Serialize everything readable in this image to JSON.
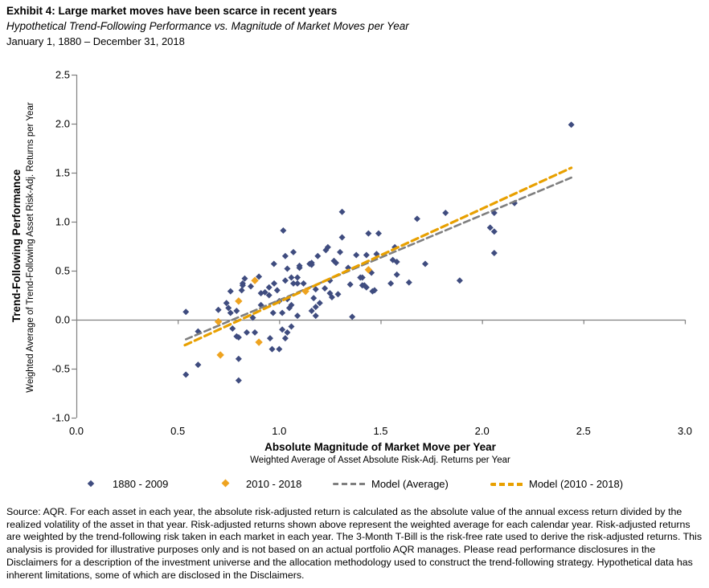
{
  "header": {
    "title": "Exhibit 4: Large market moves have been scarce in recent years",
    "subtitle": "Hypothetical Trend-Following Performance vs. Magnitude of Market Moves per Year",
    "date_range": "January 1, 1880 – December 31, 2018"
  },
  "chart_data": {
    "type": "scatter",
    "x_axis": {
      "title": "Absolute Magnitude of Market Move per Year",
      "subtitle": "Weighted Average of Asset Absolute Risk-Adj. Returns per Year",
      "min": 0.0,
      "max": 3.0,
      "ticks": [
        0.0,
        0.5,
        1.0,
        1.5,
        2.0,
        2.5,
        3.0
      ]
    },
    "y_axis": {
      "title": "Trend-Following Performance",
      "subtitle": "Weighted Average of Trend-Following Asset Risk-Adj. Returns per Year",
      "min": -1.0,
      "max": 2.5,
      "ticks": [
        2.5,
        2.0,
        1.5,
        1.0,
        0.5,
        0.0,
        -0.5,
        -1.0
      ]
    },
    "grid": "zero-line-only",
    "legend_position": "bottom",
    "colors": {
      "axis": "#808080",
      "text": "#000000"
    },
    "series": [
      {
        "name": "1880 - 2009",
        "type": "scatter",
        "marker": "diamond",
        "color": "#3F4C7F",
        "points": [
          [
            0.54,
            0.08
          ],
          [
            0.54,
            -0.56
          ],
          [
            0.6,
            -0.12
          ],
          [
            0.6,
            -0.46
          ],
          [
            0.7,
            0.1
          ],
          [
            0.74,
            0.17
          ],
          [
            0.75,
            0.12
          ],
          [
            0.76,
            0.07
          ],
          [
            0.76,
            0.29
          ],
          [
            0.77,
            -0.09
          ],
          [
            0.79,
            -0.17
          ],
          [
            0.79,
            0.09
          ],
          [
            0.8,
            -0.4
          ],
          [
            0.8,
            -0.62
          ],
          [
            0.8,
            -0.18
          ],
          [
            0.815,
            0.3
          ],
          [
            0.82,
            0.37
          ],
          [
            0.82,
            0.35
          ],
          [
            0.83,
            0.42
          ],
          [
            0.84,
            -0.13
          ],
          [
            0.86,
            0.34
          ],
          [
            0.87,
            0.02
          ],
          [
            0.88,
            -0.13
          ],
          [
            0.9,
            0.44
          ],
          [
            0.91,
            0.27
          ],
          [
            0.91,
            0.15
          ],
          [
            0.93,
            0.28
          ],
          [
            0.95,
            0.33
          ],
          [
            0.95,
            0.25
          ],
          [
            0.955,
            -0.19
          ],
          [
            0.965,
            -0.3
          ],
          [
            0.97,
            0.07
          ],
          [
            0.975,
            0.37
          ],
          [
            0.974,
            0.57
          ],
          [
            0.99,
            0.3
          ],
          [
            1.0,
            0.19
          ],
          [
            1.0,
            -0.3
          ],
          [
            1.015,
            0.07
          ],
          [
            1.015,
            -0.1
          ],
          [
            1.02,
            0.91
          ],
          [
            1.03,
            0.4
          ],
          [
            1.03,
            0.65
          ],
          [
            1.03,
            -0.19
          ],
          [
            1.04,
            -0.13
          ],
          [
            1.04,
            0.52
          ],
          [
            1.04,
            0.21
          ],
          [
            1.05,
            0.12
          ],
          [
            1.06,
            -0.07
          ],
          [
            1.06,
            0.43
          ],
          [
            1.06,
            0.15
          ],
          [
            1.07,
            0.69
          ],
          [
            1.07,
            0.37
          ],
          [
            1.09,
            0.43
          ],
          [
            1.09,
            0.37
          ],
          [
            1.09,
            0.04
          ],
          [
            1.1,
            0.55
          ],
          [
            1.1,
            0.53
          ],
          [
            1.12,
            0.37
          ],
          [
            1.15,
            0.57
          ],
          [
            1.16,
            0.58
          ],
          [
            1.16,
            0.56
          ],
          [
            1.16,
            0.09
          ],
          [
            1.17,
            0.22
          ],
          [
            1.18,
            0.31
          ],
          [
            1.18,
            0.13
          ],
          [
            1.18,
            0.04
          ],
          [
            1.19,
            0.65
          ],
          [
            1.2,
            0.17
          ],
          [
            1.225,
            0.32
          ],
          [
            1.23,
            0.71
          ],
          [
            1.24,
            0.74
          ],
          [
            1.25,
            0.4
          ],
          [
            1.25,
            0.27
          ],
          [
            1.26,
            0.23
          ],
          [
            1.27,
            0.6
          ],
          [
            1.28,
            0.58
          ],
          [
            1.29,
            0.26
          ],
          [
            1.3,
            0.69
          ],
          [
            1.31,
            0.84
          ],
          [
            1.31,
            1.1
          ],
          [
            1.34,
            0.53
          ],
          [
            1.35,
            0.36
          ],
          [
            1.36,
            0.03
          ],
          [
            1.38,
            0.66
          ],
          [
            1.4,
            0.43
          ],
          [
            1.41,
            0.43
          ],
          [
            1.41,
            0.35
          ],
          [
            1.42,
            0.35
          ],
          [
            1.43,
            0.33
          ],
          [
            1.43,
            0.66
          ],
          [
            1.44,
            0.88
          ],
          [
            1.455,
            0.48
          ],
          [
            1.46,
            0.29
          ],
          [
            1.47,
            0.3
          ],
          [
            1.48,
            0.67
          ],
          [
            1.49,
            0.88
          ],
          [
            1.55,
            0.37
          ],
          [
            1.56,
            0.61
          ],
          [
            1.57,
            0.74
          ],
          [
            1.58,
            0.46
          ],
          [
            1.58,
            0.59
          ],
          [
            1.64,
            0.38
          ],
          [
            1.68,
            1.03
          ],
          [
            1.72,
            0.57
          ],
          [
            1.82,
            1.09
          ],
          [
            1.89,
            0.4
          ],
          [
            2.04,
            0.94
          ],
          [
            2.06,
            0.9
          ],
          [
            2.06,
            0.68
          ],
          [
            2.06,
            1.09
          ],
          [
            2.16,
            1.19
          ],
          [
            2.44,
            1.99
          ]
        ]
      },
      {
        "name": "2010 - 2018",
        "type": "scatter",
        "marker": "diamond",
        "color": "#EEA320",
        "points": [
          [
            0.7,
            -0.02
          ],
          [
            0.71,
            -0.36
          ],
          [
            0.8,
            0.19
          ],
          [
            0.88,
            0.4
          ],
          [
            0.9,
            -0.23
          ],
          [
            1.13,
            0.29
          ],
          [
            1.44,
            0.51
          ]
        ]
      },
      {
        "name": "Model (Average)",
        "type": "line",
        "style": "dashed",
        "color": "#7F7F7F",
        "points": [
          [
            0.54,
            -0.2
          ],
          [
            2.44,
            1.45
          ]
        ]
      },
      {
        "name": "Model (2010 - 2018)",
        "type": "line",
        "style": "dashed",
        "color": "#E8A000",
        "points": [
          [
            0.535,
            -0.26
          ],
          [
            2.44,
            1.55
          ]
        ]
      }
    ]
  },
  "source": {
    "text": "Source: AQR. For each asset in each year, the absolute risk-adjusted return is calculated as the absolute value of the annual excess return divided by the realized volatility of the asset in that year. Risk-adjusted returns shown above represent the weighted average for each calendar year. Risk-adjusted returns are weighted by the trend-following risk taken in each market in each year. The 3-Month T-Bill is the risk-free rate used to derive the risk-adjusted returns. This analysis is provided for illustrative purposes only and is not based on an actual portfolio AQR manages. Please read performance disclosures in the Disclaimers for a description of the investment universe and the allocation methodology used to construct the trend-following strategy. Hypothetical data has inherent limitations, some of which are disclosed in the Disclaimers."
  }
}
